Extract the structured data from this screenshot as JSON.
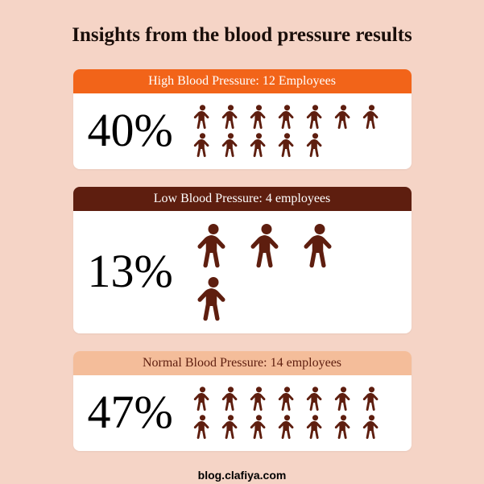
{
  "title": "Insights from the blood pressure results",
  "background_color": "#f5d4c6",
  "card_background": "#ffffff",
  "icon_color": "#5e1e0f",
  "cards": [
    {
      "header_text": "High Blood Pressure: 12 Employees",
      "header_bg": "#f26419",
      "header_color": "#ffffff",
      "header_fontsize": 16,
      "header_padding": 6,
      "percentage": "40%",
      "percentage_fontsize": 58,
      "icon_count": 12,
      "icon_size": 33,
      "icons_per_row": 7,
      "icons_gap": 2
    },
    {
      "header_text": "Low Blood Pressure: 4 employees",
      "header_bg": "#5e1e0f",
      "header_color": "#ffffff",
      "header_fontsize": 16,
      "header_padding": 6,
      "percentage": "13%",
      "percentage_fontsize": 58,
      "icon_count": 4,
      "icon_size": 60,
      "icons_per_row": 4,
      "icons_gap": 6
    },
    {
      "header_text": "Normal Blood Pressure: 14 employees",
      "header_bg": "#f4bd9a",
      "header_color": "#5e1e0f",
      "header_fontsize": 16,
      "header_padding": 6,
      "percentage": "47%",
      "percentage_fontsize": 58,
      "icon_count": 14,
      "icon_size": 33,
      "icons_per_row": 7,
      "icons_gap": 2
    }
  ],
  "footer": "blog.clafiya.com"
}
